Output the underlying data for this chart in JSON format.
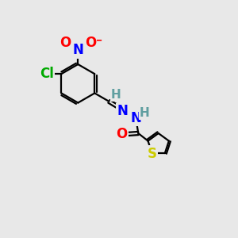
{
  "bg_color": "#e8e8e8",
  "bond_color": "#000000",
  "bond_lw": 1.6,
  "atom_colors": {
    "C": "#000000",
    "H": "#5f9ea0",
    "N": "#0000ff",
    "O": "#ff0000",
    "S": "#cccc00",
    "Cl": "#00aa00"
  },
  "font_size": 12,
  "font_size_h": 11,
  "font_size_small": 9
}
